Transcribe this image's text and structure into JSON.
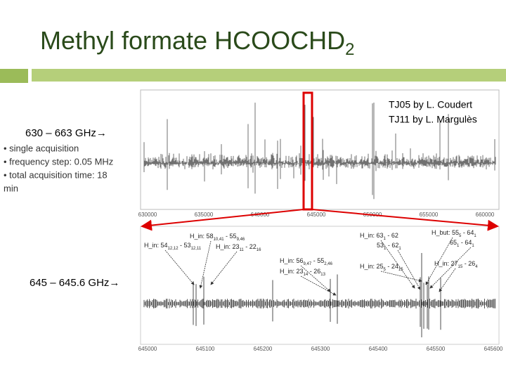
{
  "header": {
    "title": "Methyl formate HCOOCHD",
    "title_sub": "2"
  },
  "notes": {
    "range1": "630 – 663 GHz→",
    "bullets": [
      "• single acquisition",
      "• frequency step: 0.05 MHz",
      "• total acquisition time: 18",
      "min"
    ],
    "range2": "645 – 645.6 GHz→",
    "credits": [
      "TJ05 by L. Coudert",
      "TJ11 by L. Margulès"
    ]
  },
  "upper_spectrum": {
    "ticks": [
      "630000",
      "635000",
      "640000",
      "645000",
      "650000",
      "655000",
      "660000"
    ]
  },
  "lower_spectrum": {
    "ticks": [
      "645000",
      "645100",
      "645200",
      "645300",
      "645400",
      "645500",
      "645600"
    ],
    "annotations": [
      [
        "H_in: 54",
        "12,12",
        " - 53",
        "12,11"
      ],
      [
        "H_in: 58",
        "10,41",
        " - 55",
        "9,46"
      ],
      [
        "H_in: 23",
        "11",
        " - 22",
        "16"
      ],
      [
        "H_in: 56",
        "9,47",
        " - 55",
        "2,46"
      ],
      [
        "H_in: 23",
        "14",
        " - 26",
        "13"
      ],
      [
        "H_in: 63",
        "1",
        " - 62"
      ],
      [
        "53",
        "1",
        " - 62",
        "1"
      ],
      [
        "H_in: 25",
        "5",
        " - 24",
        "15"
      ],
      [
        "H_but: 55",
        "5",
        " - 64",
        "1"
      ],
      [
        "65",
        "1",
        " - 64",
        "1"
      ],
      [
        "H_in: 27",
        "15",
        " - 26",
        "4"
      ]
    ]
  }
}
